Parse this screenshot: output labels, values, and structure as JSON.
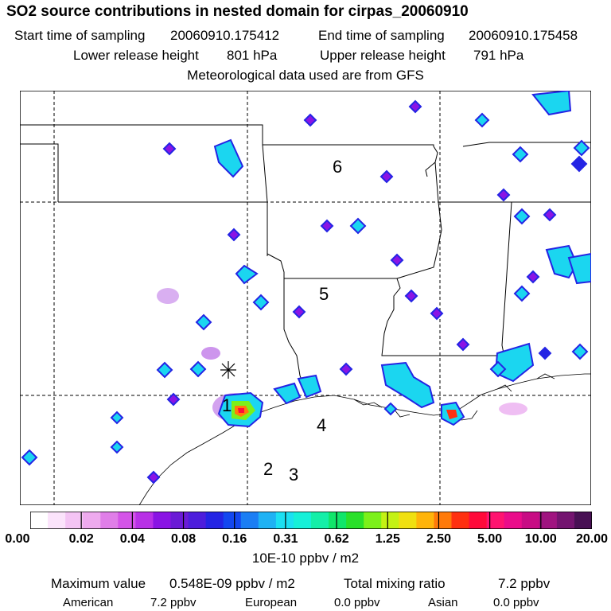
{
  "header": {
    "title": "SO2 source contributions in nested domain for cirpas_20060910",
    "start_label": "Start time of sampling",
    "start_value": "20060910.175412",
    "end_label": "End time of sampling",
    "end_value": "20060910.175458",
    "lower_label": "Lower release height",
    "lower_value": "801 hPa",
    "upper_label": "Upper release height",
    "upper_value": "791 hPa",
    "met_note": "Meteorological data used are from GFS"
  },
  "map": {
    "region_labels": [
      "6",
      "5",
      "4",
      "1",
      "2",
      "3"
    ],
    "marker": "sampling-location-asterisk"
  },
  "colorbar": {
    "colors": [
      "#ffffff",
      "#fbe3fb",
      "#f4c4f4",
      "#eeaaee",
      "#e07ee8",
      "#d454e8",
      "#b830e6",
      "#8a14e4",
      "#6b1bd6",
      "#4d1ddc",
      "#2424e4",
      "#1447f0",
      "#1b7ef4",
      "#1eb2f4",
      "#1be0f2",
      "#16f0d8",
      "#14efa8",
      "#10e66a",
      "#2ae02a",
      "#7cf01a",
      "#c4f214",
      "#f0e010",
      "#ffb40a",
      "#ff7a0a",
      "#ff3010",
      "#ff0a3a",
      "#ff1470",
      "#ea0c8a",
      "#c80c84",
      "#a01480",
      "#741470",
      "#481054"
    ],
    "tick_labels": [
      "0.00",
      "0.02",
      "0.04",
      "0.08",
      "0.16",
      "0.31",
      "0.62",
      "1.25",
      "2.50",
      "5.00",
      "10.00",
      "20.00"
    ],
    "unit": "10E-10 ppbv / m2"
  },
  "footer": {
    "max_label": "Maximum value",
    "max_value": "0.548E-09 ppbv / m2",
    "total_label": "Total mixing ratio",
    "total_value": "7.2 ppbv",
    "american_label": "American",
    "american_value": "7.2 ppbv",
    "european_label": "European",
    "european_value": "0.0 ppbv",
    "asian_label": "Asian",
    "asian_value": "0.0 ppbv"
  },
  "chart_data": {
    "type": "heatmap",
    "title": "SO2 source contributions in nested domain for cirpas_20060910",
    "unit": "10E-10 ppbv / m2",
    "levels": [
      0.0,
      0.02,
      0.04,
      0.08,
      0.16,
      0.31,
      0.62,
      1.25,
      2.5,
      5.0,
      10.0,
      20.0
    ],
    "maximum": "0.548E-09 ppbv / m2",
    "total_mixing_ratio": "7.2 ppbv"
  }
}
